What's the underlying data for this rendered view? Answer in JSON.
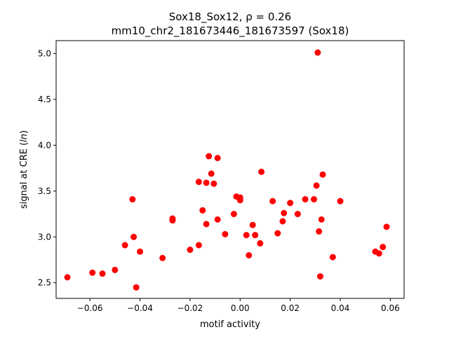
{
  "chart_data": {
    "type": "scatter",
    "title_line1": "Sox18_Sox12, ρ = 0.26",
    "title_line2": "mm10_chr2_181673446_181673597 (Sox18)",
    "xlabel": "motif activity",
    "ylabel": "signal at CRE (ln)",
    "xlim": [
      -0.0735,
      0.0655
    ],
    "ylim": [
      2.33,
      5.14
    ],
    "xticks": [
      -0.06,
      -0.04,
      -0.02,
      0.0,
      0.02,
      0.04,
      0.06
    ],
    "xtick_labels": [
      "−0.06",
      "−0.04",
      "−0.02",
      "0.00",
      "0.02",
      "0.04",
      "0.06"
    ],
    "yticks": [
      2.5,
      3.0,
      3.5,
      4.0,
      4.5,
      5.0
    ],
    "ytick_labels": [
      "2.5",
      "3.0",
      "3.5",
      "4.0",
      "4.5",
      "5.0"
    ],
    "grid": false,
    "marker_color": "#ff0000",
    "points": [
      {
        "x": -0.069,
        "y": 2.56
      },
      {
        "x": -0.059,
        "y": 2.61
      },
      {
        "x": -0.055,
        "y": 2.6
      },
      {
        "x": -0.05,
        "y": 2.64
      },
      {
        "x": -0.046,
        "y": 2.91
      },
      {
        "x": -0.043,
        "y": 3.41
      },
      {
        "x": -0.0425,
        "y": 3.0
      },
      {
        "x": -0.0415,
        "y": 2.45
      },
      {
        "x": -0.04,
        "y": 2.84
      },
      {
        "x": -0.031,
        "y": 2.77
      },
      {
        "x": -0.027,
        "y": 3.18
      },
      {
        "x": -0.027,
        "y": 3.2
      },
      {
        "x": -0.02,
        "y": 2.86
      },
      {
        "x": -0.0165,
        "y": 3.6
      },
      {
        "x": -0.0165,
        "y": 2.91
      },
      {
        "x": -0.015,
        "y": 3.29
      },
      {
        "x": -0.0135,
        "y": 3.59
      },
      {
        "x": -0.0135,
        "y": 3.14
      },
      {
        "x": -0.0125,
        "y": 3.88
      },
      {
        "x": -0.0115,
        "y": 3.69
      },
      {
        "x": -0.0105,
        "y": 3.58
      },
      {
        "x": -0.009,
        "y": 3.86
      },
      {
        "x": -0.009,
        "y": 3.19
      },
      {
        "x": -0.006,
        "y": 3.03
      },
      {
        "x": -0.0025,
        "y": 3.25
      },
      {
        "x": -0.0015,
        "y": 3.44
      },
      {
        "x": 0.0,
        "y": 3.43
      },
      {
        "x": 0.0,
        "y": 3.4
      },
      {
        "x": 0.0025,
        "y": 3.02
      },
      {
        "x": 0.0035,
        "y": 2.8
      },
      {
        "x": 0.005,
        "y": 3.13
      },
      {
        "x": 0.006,
        "y": 3.02
      },
      {
        "x": 0.008,
        "y": 2.93
      },
      {
        "x": 0.0085,
        "y": 3.71
      },
      {
        "x": 0.013,
        "y": 3.39
      },
      {
        "x": 0.015,
        "y": 3.04
      },
      {
        "x": 0.017,
        "y": 3.17
      },
      {
        "x": 0.0175,
        "y": 3.26
      },
      {
        "x": 0.02,
        "y": 3.37
      },
      {
        "x": 0.023,
        "y": 3.25
      },
      {
        "x": 0.026,
        "y": 3.41
      },
      {
        "x": 0.0295,
        "y": 3.41
      },
      {
        "x": 0.0305,
        "y": 3.56
      },
      {
        "x": 0.031,
        "y": 5.01
      },
      {
        "x": 0.0315,
        "y": 3.06
      },
      {
        "x": 0.032,
        "y": 2.57
      },
      {
        "x": 0.0325,
        "y": 3.19
      },
      {
        "x": 0.033,
        "y": 3.68
      },
      {
        "x": 0.037,
        "y": 2.78
      },
      {
        "x": 0.04,
        "y": 3.39
      },
      {
        "x": 0.054,
        "y": 2.84
      },
      {
        "x": 0.0555,
        "y": 2.82
      },
      {
        "x": 0.057,
        "y": 2.89
      },
      {
        "x": 0.0585,
        "y": 3.11
      }
    ]
  }
}
